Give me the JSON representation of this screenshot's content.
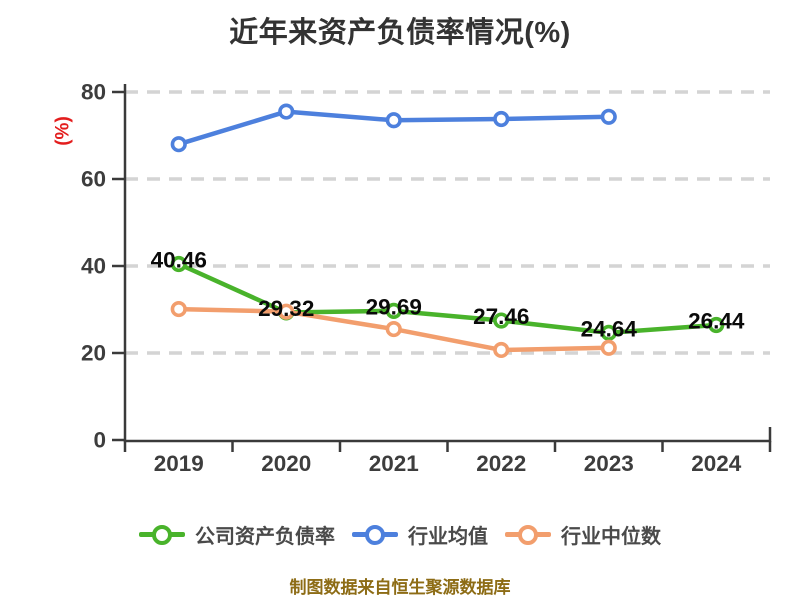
{
  "footer_note": "制图数据来自恒生聚源数据库",
  "colors": {
    "company_green": "#49b32b",
    "industry_avg_blue": "#4d80dd",
    "industry_median_orange": "#f29e6d",
    "grid_gray": "#d4d4d4",
    "axis_line": "#3a3a3a",
    "axis_text": "#3d3d3d",
    "y_label_red": "#e31d1d",
    "data_label_black": "#0a0a0a",
    "legend_text": "#4a4a4a",
    "footer_gold": "#8d6c15",
    "title_text": "#333333",
    "marker_fill": "#ffffff",
    "background": "#ffffff"
  },
  "chart_data": {
    "type": "line",
    "title": "近年来资产负债率情况(%)",
    "ylabel": "(%)",
    "x_categories": [
      "2019",
      "2020",
      "2021",
      "2022",
      "2023",
      "2024"
    ],
    "ylim": [
      0,
      80
    ],
    "yticks": [
      0,
      20,
      40,
      60,
      80
    ],
    "grid": "horizontal-dashed",
    "legend_position": "bottom",
    "series": [
      {
        "name": "公司资产负债率",
        "color_key": "company_green",
        "values": [
          40.46,
          29.32,
          29.69,
          27.46,
          24.64,
          26.44
        ],
        "point_labels": [
          "40.46",
          "29.32",
          "29.69",
          "27.46",
          "24.64",
          "26.44"
        ]
      },
      {
        "name": "行业均值",
        "color_key": "industry_avg_blue",
        "values": [
          68.0,
          75.5,
          73.5,
          73.8,
          74.3,
          null
        ],
        "point_labels": null
      },
      {
        "name": "行业中位数",
        "color_key": "industry_median_orange",
        "values": [
          30.1,
          29.5,
          25.5,
          20.7,
          21.2,
          null
        ],
        "point_labels": null
      }
    ]
  }
}
